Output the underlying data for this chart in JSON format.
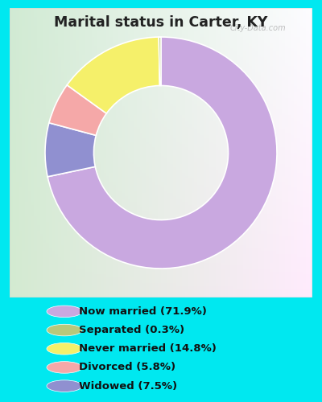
{
  "title": "Marital status in Carter, KY",
  "slices": [
    71.9,
    7.5,
    5.8,
    14.8,
    0.3
  ],
  "labels": [
    "Now married (71.9%)",
    "Separated (0.3%)",
    "Never married (14.8%)",
    "Divorced (5.8%)",
    "Widowed (7.5%)"
  ],
  "legend_colors": [
    "#c9a8e0",
    "#b8c87a",
    "#f5f06a",
    "#f5a8a8",
    "#9090d0"
  ],
  "pie_colors": [
    "#c9a8e0",
    "#9090d0",
    "#f5a8a8",
    "#f5f06a",
    "#b8c87a"
  ],
  "bg_color": "#00e8f0",
  "title_color": "#222222",
  "watermark": "City-Data.com",
  "donut_width": 0.42,
  "chart_panel": [
    0.03,
    0.26,
    0.94,
    0.72
  ]
}
